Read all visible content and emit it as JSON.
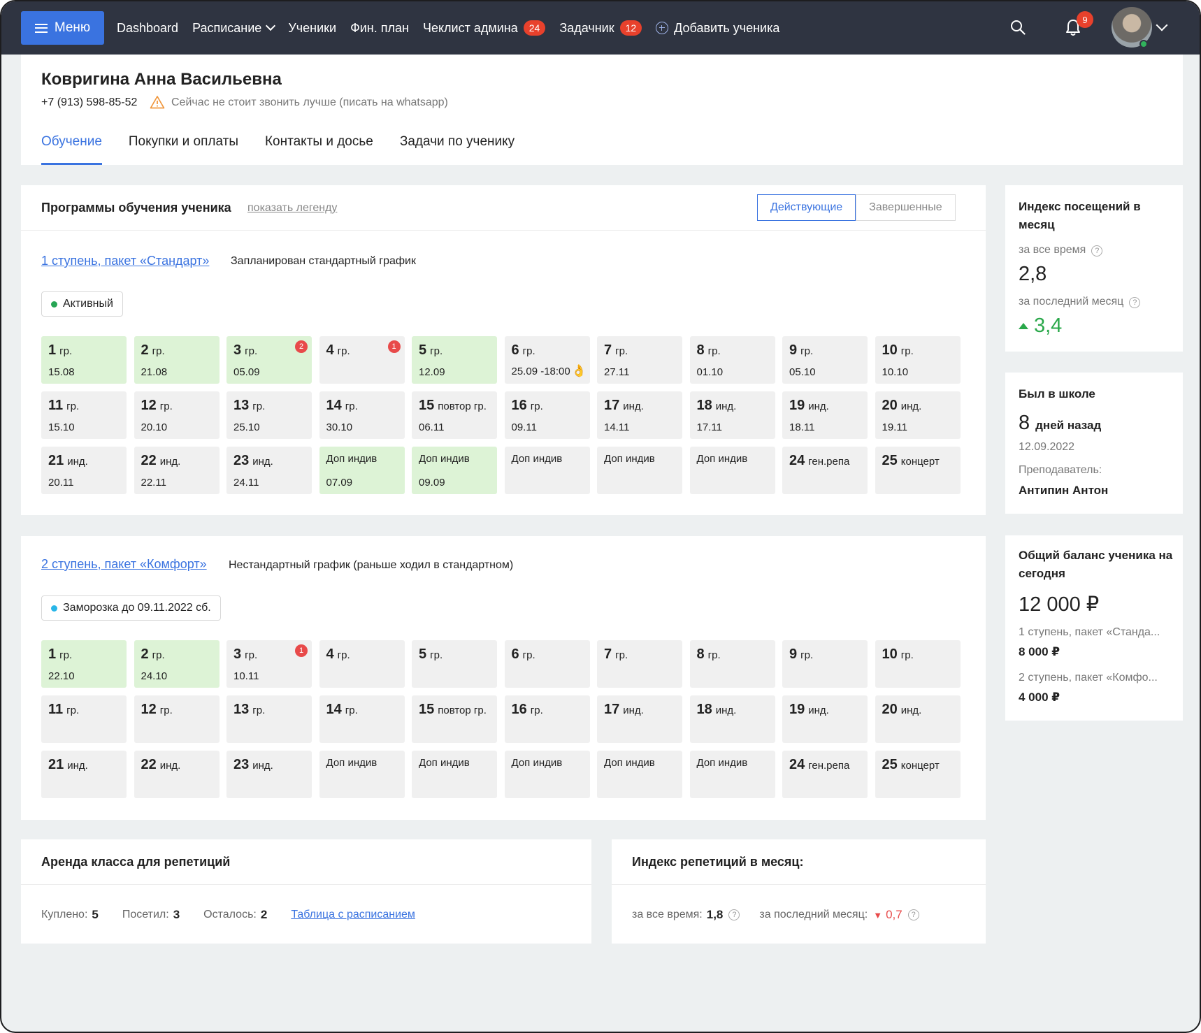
{
  "nav": {
    "menu_label": "Меню",
    "items": [
      {
        "label": "Dashboard"
      },
      {
        "label": "Расписание"
      },
      {
        "label": "Ученики"
      },
      {
        "label": "Фин. план"
      },
      {
        "label": "Чеклист админа",
        "badge": "24"
      },
      {
        "label": "Задачник",
        "badge": "12"
      },
      {
        "label": "Добавить ученика"
      }
    ],
    "notifications_count": "9"
  },
  "student": {
    "name": "Ковригина Анна Васильевна",
    "phone": "+7 (913) 598-85-52",
    "warning": "Сейчас не стоит звонить лучше (писать на whatsapp)",
    "tabs": [
      "Обучение",
      "Покупки и оплаты",
      "Контакты и досье",
      "Задачи по ученику"
    ]
  },
  "programs": {
    "title": "Программы обучения ученика",
    "legend_link": "показать легенду",
    "filter": {
      "active": "Действующие",
      "done": "Завершенные"
    },
    "list": [
      {
        "name": "1 ступень, пакет «Стандарт»",
        "schedule": "Запланирован стандартный график",
        "status": "Активный",
        "status_color": "#27a554",
        "lessons": [
          {
            "num": "1",
            "suffix": "гр.",
            "date": "15.08",
            "green": true
          },
          {
            "num": "2",
            "suffix": "гр.",
            "date": "21.08",
            "green": true
          },
          {
            "num": "3",
            "suffix": "гр.",
            "date": "05.09",
            "green": true,
            "badge": "2"
          },
          {
            "num": "4",
            "suffix": "гр.",
            "date": "",
            "badge": "1"
          },
          {
            "num": "5",
            "suffix": "гр.",
            "date": "12.09",
            "green": true
          },
          {
            "num": "6",
            "suffix": "гр.",
            "date": "25.09 -18:00",
            "icon": "👌"
          },
          {
            "num": "7",
            "suffix": "гр.",
            "date": "27.11"
          },
          {
            "num": "8",
            "suffix": "гр.",
            "date": "01.10"
          },
          {
            "num": "9",
            "suffix": "гр.",
            "date": "05.10"
          },
          {
            "num": "10",
            "suffix": "гр.",
            "date": "10.10"
          },
          {
            "num": "11",
            "suffix": "гр.",
            "date": "15.10"
          },
          {
            "num": "12",
            "suffix": "гр.",
            "date": "20.10"
          },
          {
            "num": "13",
            "suffix": "гр.",
            "date": "25.10"
          },
          {
            "num": "14",
            "suffix": "гр.",
            "date": "30.10"
          },
          {
            "num": "15",
            "suffix": "повтор гр.",
            "date": "06.11"
          },
          {
            "num": "16",
            "suffix": "гр.",
            "date": "09.11"
          },
          {
            "num": "17",
            "suffix": "инд.",
            "date": "14.11"
          },
          {
            "num": "18",
            "suffix": "инд.",
            "date": "17.11"
          },
          {
            "num": "19",
            "suffix": "инд.",
            "date": "18.11"
          },
          {
            "num": "20",
            "suffix": "инд.",
            "date": "19.11"
          },
          {
            "num": "21",
            "suffix": "инд.",
            "date": "20.11"
          },
          {
            "num": "22",
            "suffix": "инд.",
            "date": "22.11"
          },
          {
            "num": "23",
            "suffix": "инд.",
            "date": "24.11"
          },
          {
            "num": "",
            "suffix": "Доп индив",
            "date": "07.09",
            "green": true
          },
          {
            "num": "",
            "suffix": "Доп индив",
            "date": "09.09",
            "green": true
          },
          {
            "num": "",
            "suffix": "Доп индив",
            "date": ""
          },
          {
            "num": "",
            "suffix": "Доп индив",
            "date": ""
          },
          {
            "num": "",
            "suffix": "Доп индив",
            "date": ""
          },
          {
            "num": "24",
            "suffix": "ген.репа",
            "date": ""
          },
          {
            "num": "25",
            "suffix": "концерт",
            "date": ""
          }
        ]
      },
      {
        "name": "2 ступень, пакет «Комфорт»",
        "schedule": "Нестандартный график (раньше ходил в стандартном)",
        "status": "Заморозка до 09.11.2022 сб.",
        "status_color": "#29b6e8",
        "lessons": [
          {
            "num": "1",
            "suffix": "гр.",
            "date": "22.10",
            "green": true
          },
          {
            "num": "2",
            "suffix": "гр.",
            "date": "24.10",
            "green": true
          },
          {
            "num": "3",
            "suffix": "гр.",
            "date": "10.11",
            "badge": "1"
          },
          {
            "num": "4",
            "suffix": "гр.",
            "date": ""
          },
          {
            "num": "5",
            "suffix": "гр.",
            "date": ""
          },
          {
            "num": "6",
            "suffix": "гр.",
            "date": ""
          },
          {
            "num": "7",
            "suffix": "гр.",
            "date": ""
          },
          {
            "num": "8",
            "suffix": "гр.",
            "date": ""
          },
          {
            "num": "9",
            "suffix": "гр.",
            "date": ""
          },
          {
            "num": "10",
            "suffix": "гр.",
            "date": ""
          },
          {
            "num": "11",
            "suffix": "гр.",
            "date": ""
          },
          {
            "num": "12",
            "suffix": "гр.",
            "date": ""
          },
          {
            "num": "13",
            "suffix": "гр.",
            "date": ""
          },
          {
            "num": "14",
            "suffix": "гр.",
            "date": ""
          },
          {
            "num": "15",
            "suffix": "повтор гр.",
            "date": ""
          },
          {
            "num": "16",
            "suffix": "гр.",
            "date": ""
          },
          {
            "num": "17",
            "suffix": "инд.",
            "date": ""
          },
          {
            "num": "18",
            "suffix": "инд.",
            "date": ""
          },
          {
            "num": "19",
            "suffix": "инд.",
            "date": ""
          },
          {
            "num": "20",
            "suffix": "инд.",
            "date": ""
          },
          {
            "num": "21",
            "suffix": "инд.",
            "date": ""
          },
          {
            "num": "22",
            "suffix": "инд.",
            "date": ""
          },
          {
            "num": "23",
            "suffix": "инд.",
            "date": ""
          },
          {
            "num": "",
            "suffix": "Доп индив",
            "date": ""
          },
          {
            "num": "",
            "suffix": "Доп индив",
            "date": ""
          },
          {
            "num": "",
            "suffix": "Доп индив",
            "date": ""
          },
          {
            "num": "",
            "suffix": "Доп индив",
            "date": ""
          },
          {
            "num": "",
            "suffix": "Доп индив",
            "date": ""
          },
          {
            "num": "24",
            "suffix": "ген.репа",
            "date": ""
          },
          {
            "num": "25",
            "suffix": "концерт",
            "date": ""
          }
        ]
      }
    ]
  },
  "rent": {
    "title": "Аренда класса для репетиций",
    "bought_label": "Куплено:",
    "bought": "5",
    "visited_label": "Посетил:",
    "visited": "3",
    "left_label": "Осталось:",
    "left": "2",
    "link": "Таблица с расписанием"
  },
  "rent_index": {
    "title": "Индекс репетиций в месяц:",
    "all_label": "за все время:",
    "all": "1,8",
    "month_label": "за последний месяц:",
    "month": "0,7"
  },
  "visits": {
    "title": "Индекс посещений в месяц",
    "all_label": "за все время",
    "all": "2,8",
    "month_label": "за последний месяц",
    "month": "3,4"
  },
  "school": {
    "title": "Был в школе",
    "days": "8",
    "days_label": "дней назад",
    "date": "12.09.2022",
    "teacher_label": "Преподаватель:",
    "teacher": "Антипин Антон"
  },
  "balance": {
    "title": "Общий баланс ученика на сегодня",
    "total": "12 000 ₽",
    "items": [
      {
        "name": "1 ступень, пакет «Станда...",
        "amount": "8 000 ₽"
      },
      {
        "name": "2 ступень, пакет «Комфо...",
        "amount": "4 000 ₽"
      }
    ]
  }
}
